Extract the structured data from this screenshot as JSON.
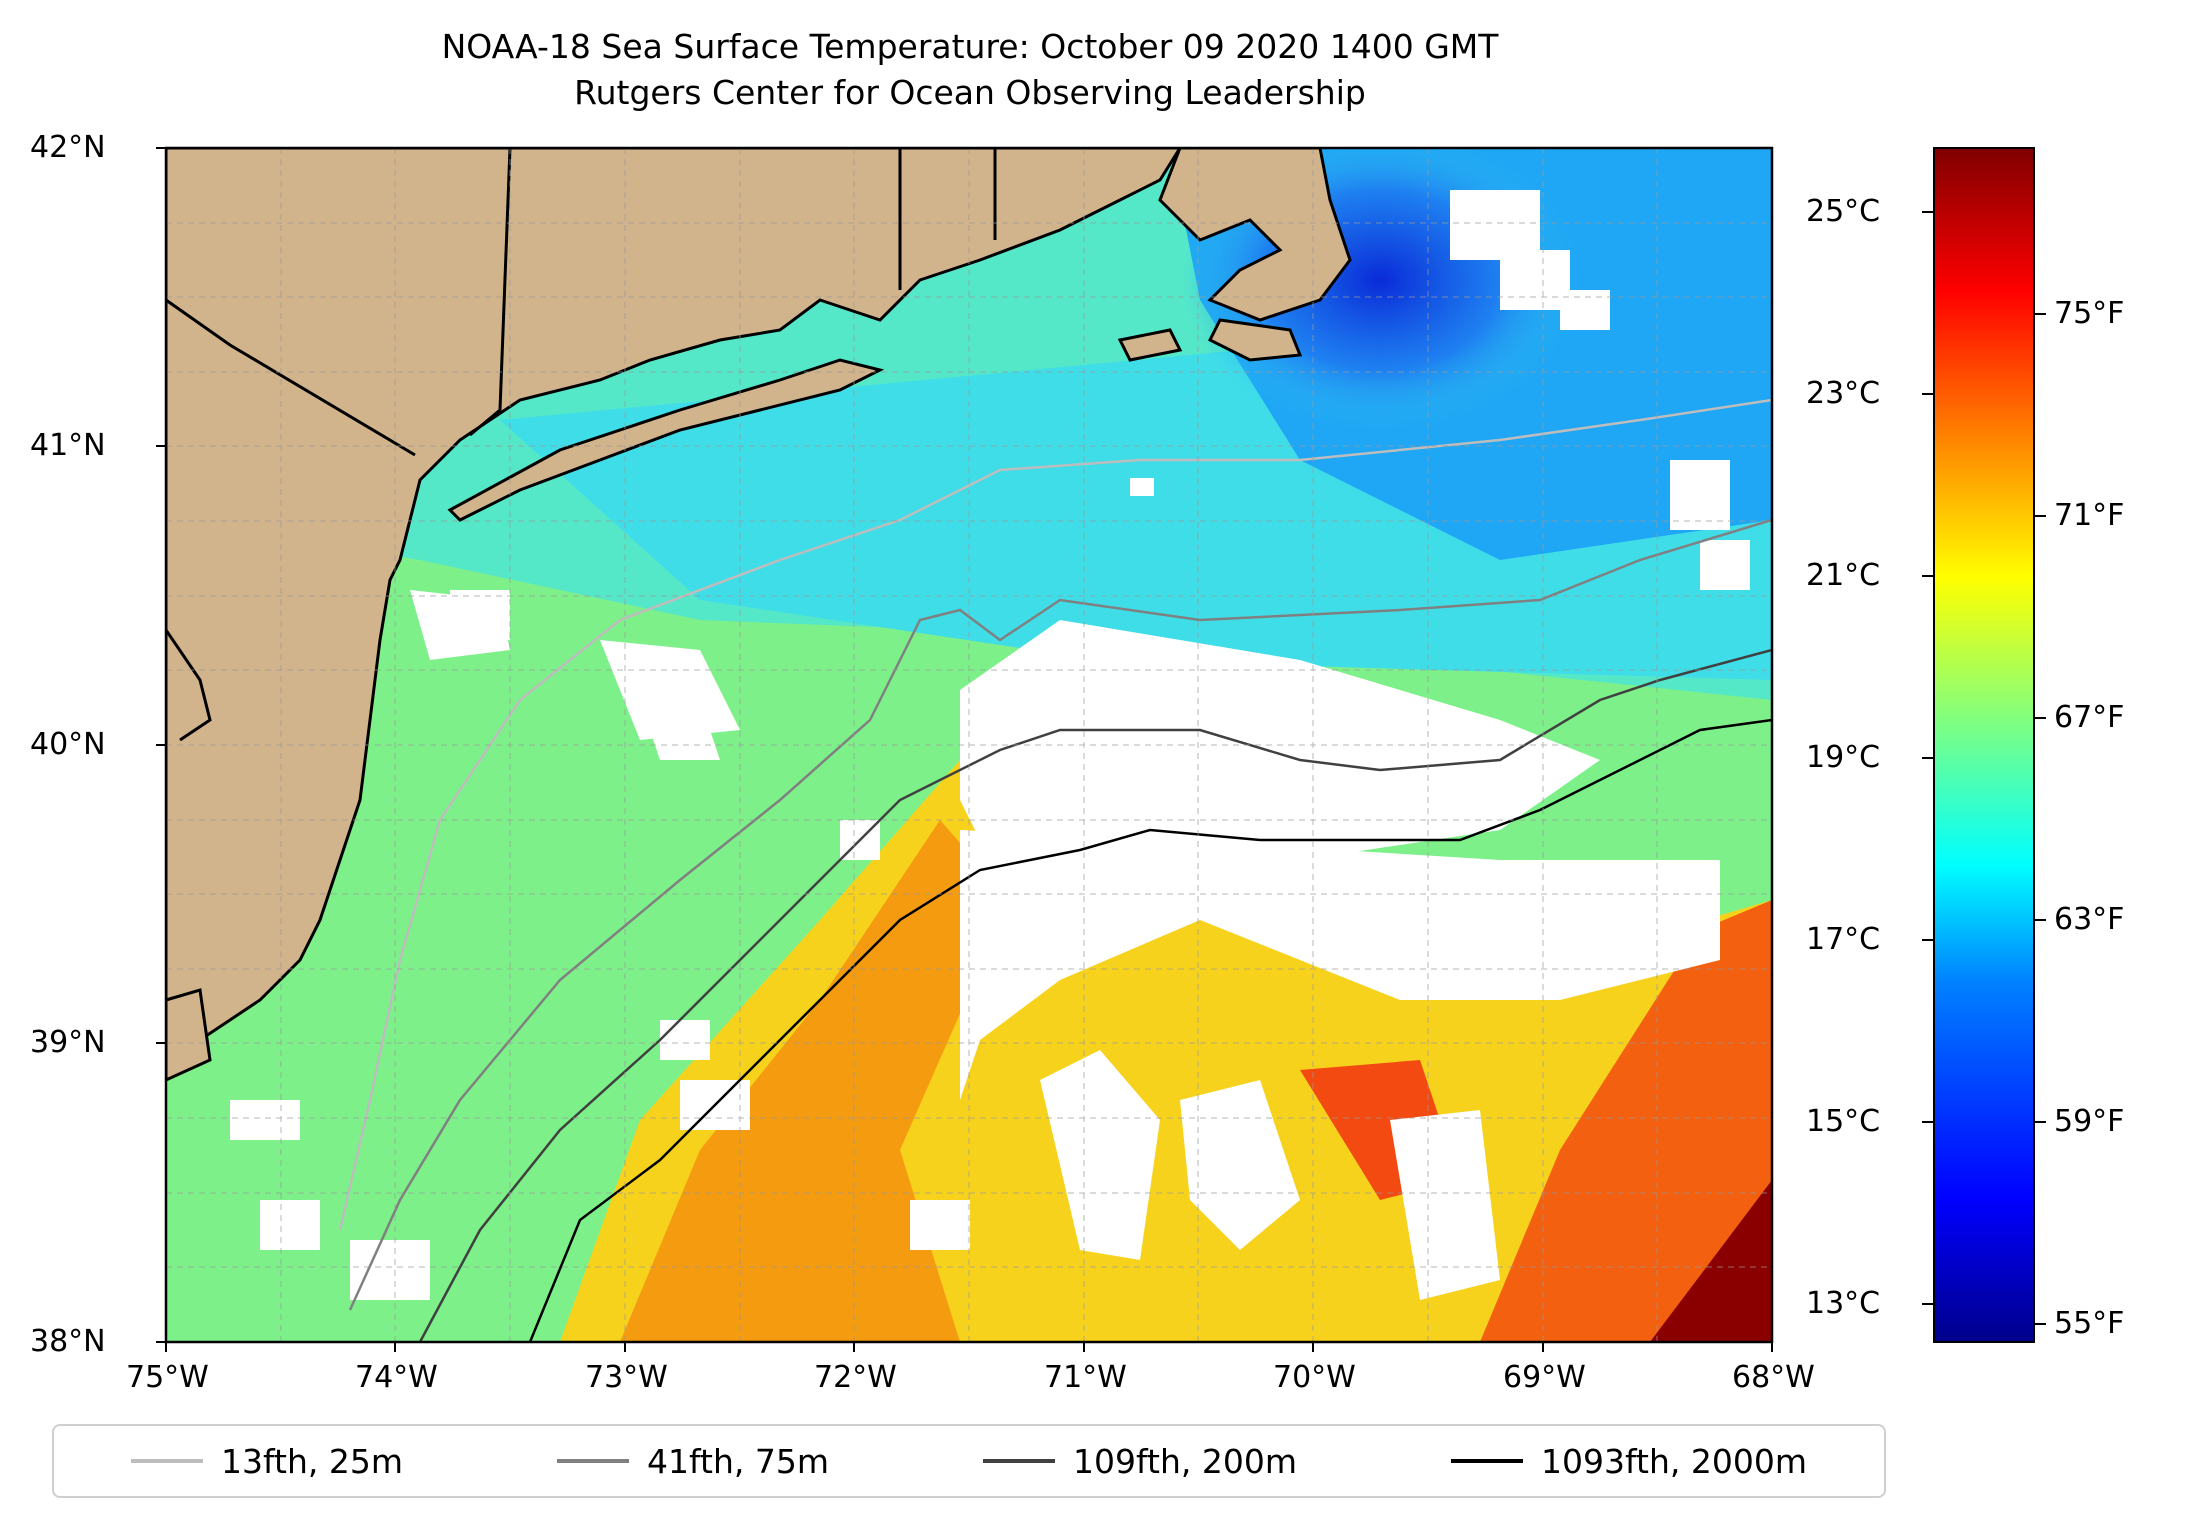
{
  "title": {
    "line1": "NOAA-18 Sea Surface Temperature: October 09 2020 1400 GMT",
    "line2": "Rutgers Center for Ocean Observing Leadership"
  },
  "axes": {
    "lat_ticks": [
      "42°N",
      "41°N",
      "40°N",
      "39°N",
      "38°N"
    ],
    "lon_ticks": [
      "75°W",
      "74°W",
      "73°W",
      "72°W",
      "71°W",
      "70°W",
      "69°W",
      "68°W"
    ],
    "lat_range": [
      38,
      42
    ],
    "lon_range": [
      -75,
      -68
    ]
  },
  "colorbar": {
    "celsius_ticks": [
      "25°C",
      "23°C",
      "21°C",
      "19°C",
      "17°C",
      "15°C",
      "13°C"
    ],
    "fahrenheit_ticks": [
      "75°F",
      "71°F",
      "67°F",
      "63°F",
      "59°F",
      "55°F"
    ],
    "colors": [
      "#00008b",
      "#0000ff",
      "#0080ff",
      "#00ffff",
      "#80ff80",
      "#ffff00",
      "#ff8000",
      "#ff0000",
      "#800000"
    ]
  },
  "legend": [
    {
      "label": "13fth, 25m",
      "color": "#bdbdbd"
    },
    {
      "label": "41fth, 75m",
      "color": "#808080"
    },
    {
      "label": "109fth, 200m",
      "color": "#404040"
    },
    {
      "label": "1093fth, 2000m",
      "color": "#000000"
    }
  ],
  "colors": {
    "land": "#d2b48c",
    "cloud": "#ffffff",
    "grid": "#aaaaaa"
  }
}
